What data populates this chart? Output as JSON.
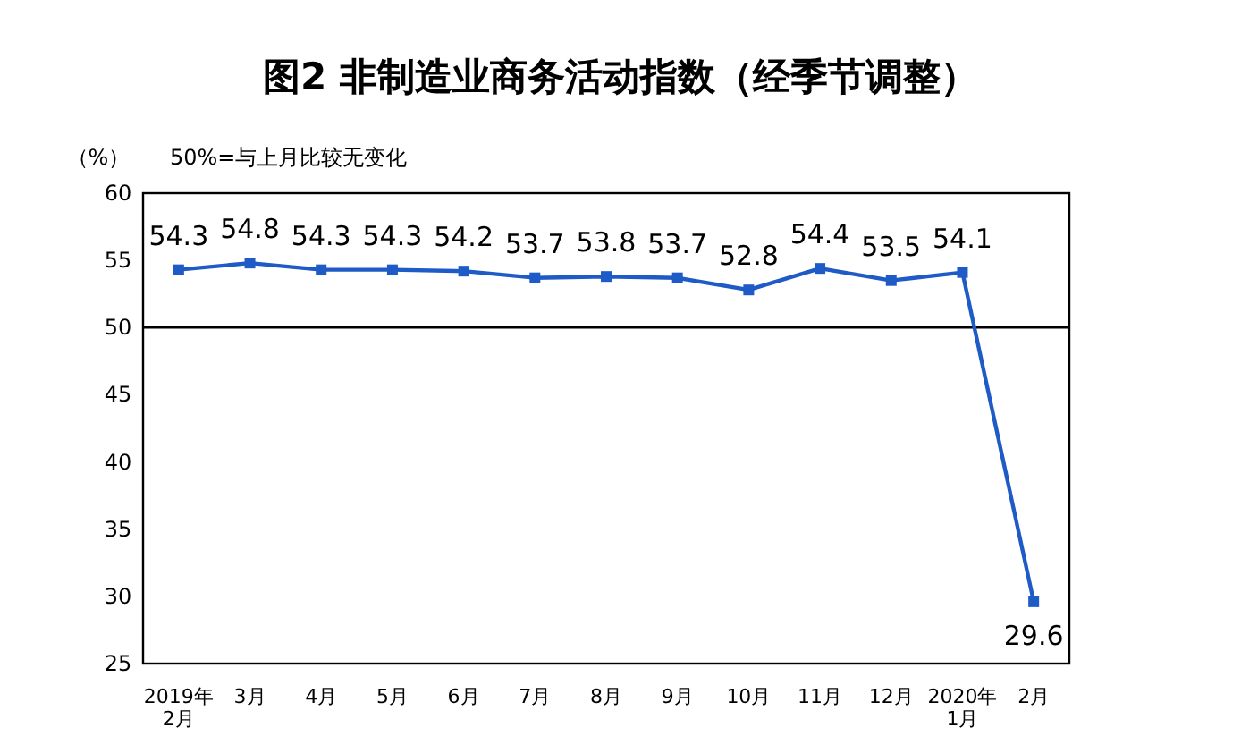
{
  "chart_data": {
    "type": "line",
    "title": "图2 非制造业商务活动指数（经季节调整）",
    "ylabel": "（%）",
    "annotations": [
      "50%=与上月比较无变化"
    ],
    "categories": [
      "2019年\n2月",
      "3月",
      "4月",
      "5月",
      "6月",
      "7月",
      "8月",
      "9月",
      "10月",
      "11月",
      "12月",
      "2020年\n1月",
      "2月"
    ],
    "series": [
      {
        "color": "#1e5bc6",
        "values": [
          54.3,
          54.8,
          54.3,
          54.3,
          54.2,
          53.7,
          53.8,
          53.7,
          52.8,
          54.4,
          53.5,
          54.1,
          29.6
        ]
      }
    ],
    "ylim": [
      25,
      60
    ],
    "yticks": [
      25,
      30,
      35,
      40,
      45,
      50,
      55,
      60
    ],
    "ref_lines": [
      {
        "axis": "y",
        "value": 50,
        "color": "#000000"
      }
    ],
    "data_labels": true,
    "marker": "square",
    "line_style": "solid",
    "grid": false
  }
}
